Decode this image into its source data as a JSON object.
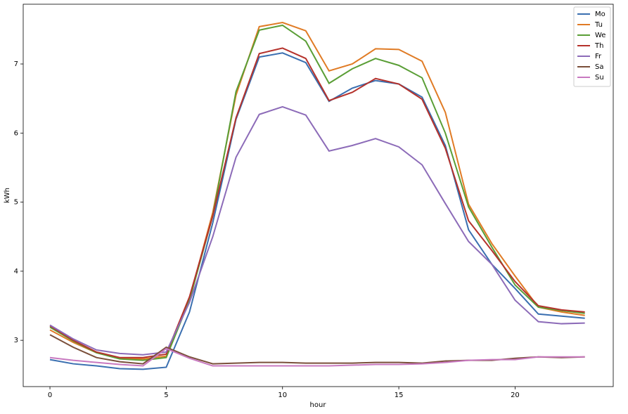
{
  "chart_data": {
    "type": "line",
    "x_label": "hour",
    "y_label": "kWh",
    "x": [
      0,
      1,
      2,
      3,
      4,
      5,
      6,
      7,
      8,
      9,
      10,
      11,
      12,
      13,
      14,
      15,
      16,
      17,
      18,
      19,
      20,
      21,
      22,
      23
    ],
    "xlim": [
      -1.15,
      24.22
    ],
    "xticks": [
      0,
      5,
      10,
      15,
      20
    ],
    "ylim": [
      2.33,
      7.865
    ],
    "yticks": [
      3,
      4,
      5,
      6,
      7
    ],
    "grid": false,
    "legend": "upper right",
    "series": [
      {
        "name": "Mo",
        "color": "#3a6fb0",
        "values": [
          2.72,
          2.66,
          2.63,
          2.59,
          2.58,
          2.61,
          3.41,
          4.7,
          6.2,
          7.1,
          7.16,
          7.02,
          6.46,
          6.65,
          6.76,
          6.71,
          6.52,
          5.82,
          4.6,
          4.1,
          3.75,
          3.38,
          3.35,
          3.32
        ]
      },
      {
        "name": "Tu",
        "color": "#e07b25",
        "values": [
          3.15,
          2.97,
          2.82,
          2.74,
          2.73,
          2.77,
          3.6,
          4.85,
          6.55,
          7.54,
          7.6,
          7.48,
          6.9,
          7.0,
          7.22,
          7.21,
          7.04,
          6.3,
          4.97,
          4.4,
          3.93,
          3.48,
          3.41,
          3.36
        ]
      },
      {
        "name": "We",
        "color": "#5a9e36",
        "values": [
          3.19,
          2.99,
          2.82,
          2.73,
          2.71,
          2.75,
          3.58,
          4.8,
          6.6,
          7.49,
          7.56,
          7.33,
          6.72,
          6.93,
          7.08,
          6.98,
          6.8,
          6.0,
          4.93,
          4.35,
          3.8,
          3.48,
          3.43,
          3.39
        ]
      },
      {
        "name": "Th",
        "color": "#b5322c",
        "values": [
          3.21,
          3.0,
          2.83,
          2.75,
          2.75,
          2.8,
          3.63,
          4.8,
          6.22,
          7.15,
          7.23,
          7.08,
          6.47,
          6.59,
          6.79,
          6.71,
          6.49,
          5.78,
          4.73,
          4.3,
          3.85,
          3.5,
          3.44,
          3.41
        ]
      },
      {
        "name": "Fr",
        "color": "#8c6bb8",
        "values": [
          3.22,
          3.02,
          2.86,
          2.81,
          2.79,
          2.83,
          3.55,
          4.5,
          5.65,
          6.27,
          6.38,
          6.26,
          5.74,
          5.82,
          5.92,
          5.8,
          5.54,
          4.98,
          4.43,
          4.1,
          3.58,
          3.27,
          3.24,
          3.25
        ]
      },
      {
        "name": "Sa",
        "color": "#7a4f3a",
        "values": [
          3.08,
          2.9,
          2.75,
          2.69,
          2.66,
          2.9,
          2.76,
          2.66,
          2.67,
          2.68,
          2.68,
          2.67,
          2.67,
          2.67,
          2.68,
          2.68,
          2.67,
          2.7,
          2.71,
          2.71,
          2.74,
          2.76,
          2.75,
          2.76
        ]
      },
      {
        "name": "Su",
        "color": "#c879c0",
        "values": [
          2.75,
          2.71,
          2.68,
          2.65,
          2.63,
          2.88,
          2.74,
          2.63,
          2.63,
          2.63,
          2.63,
          2.63,
          2.63,
          2.64,
          2.65,
          2.65,
          2.66,
          2.68,
          2.71,
          2.72,
          2.72,
          2.76,
          2.76,
          2.76
        ]
      }
    ]
  }
}
